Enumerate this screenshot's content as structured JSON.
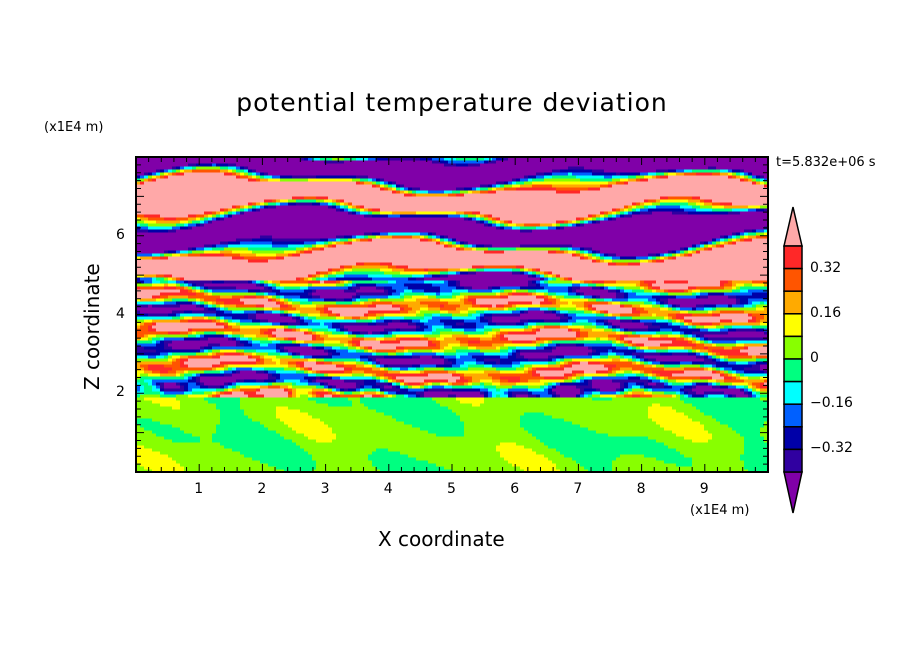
{
  "chart_data": {
    "type": "heatmap",
    "subtype": "filled-contour",
    "title": "potential temperature deviation",
    "xlabel": "X coordinate",
    "ylabel": "Z coordinate",
    "x_unit": "(x1E4 m)",
    "y_unit": "(x1E4 m)",
    "time_label": "t=5.832e+06 s",
    "xlim": [
      0,
      10
    ],
    "ylim": [
      0,
      8
    ],
    "xticks": [
      "1",
      "2",
      "3",
      "4",
      "5",
      "6",
      "7",
      "8",
      "9"
    ],
    "xtick_values": [
      1,
      2,
      3,
      4,
      5,
      6,
      7,
      8,
      9
    ],
    "yticks": [
      "2",
      "4",
      "6"
    ],
    "ytick_values": [
      2,
      4,
      6
    ],
    "levels": [
      -0.4,
      -0.32,
      -0.24,
      -0.16,
      -0.08,
      0,
      0.08,
      0.16,
      0.24,
      0.32,
      0.4
    ],
    "colors": [
      "#8000a8",
      "#3000a0",
      "#0000a8",
      "#0060ff",
      "#00ffff",
      "#00ff80",
      "#88ff00",
      "#ffff00",
      "#ffaa00",
      "#ff5500",
      "#ff2828",
      "#ffa8a8"
    ],
    "colorbar_labels": [
      "0.32",
      "0.16",
      "0",
      "-0.16",
      "-0.32"
    ],
    "colorbar_label_values": [
      0.32,
      0.16,
      0,
      -0.16,
      -0.32
    ],
    "description_of_field": {
      "lower_layer_z_0_to_2": "near zero (green / yellow-green)",
      "middle_layer_z_2_to_5": "mixed small-scale bands from -0.4 to 0.4",
      "upper_layer_z_5_to_8": "alternating bands above 0.4 and below -0.4"
    }
  }
}
